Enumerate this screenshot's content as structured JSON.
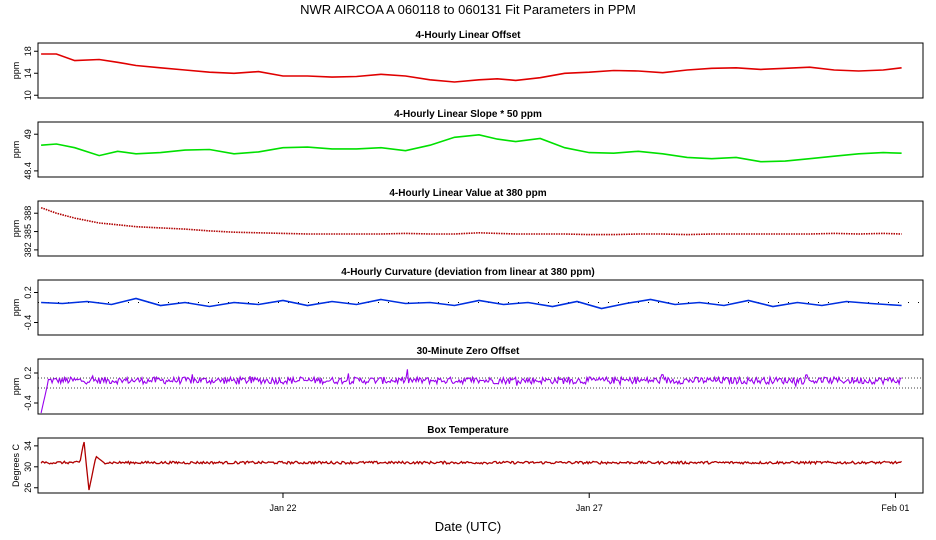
{
  "figure": {
    "title": "NWR   AIRCOA A   060118 to 060131   Fit Parameters in PPM",
    "xlabel": "Date (UTC)",
    "date_start_day": 0,
    "date_end_day": 14.45,
    "x_ticks": [
      {
        "label": "Jan 22",
        "day": 4
      },
      {
        "label": "Jan 27",
        "day": 9
      },
      {
        "label": "Feb 01",
        "day": 14
      }
    ]
  },
  "chart_data": [
    {
      "type": "line",
      "title": "4-Hourly Linear Offset",
      "ylabel": "ppm",
      "ylim": [
        9.5,
        19.5
      ],
      "yticks": [
        10,
        14,
        18
      ],
      "color": "#e00000",
      "style": "line",
      "x": [
        0.05,
        0.3,
        0.6,
        1.0,
        1.3,
        1.6,
        2.0,
        2.4,
        2.8,
        3.2,
        3.6,
        4.0,
        4.4,
        4.8,
        5.2,
        5.6,
        6.0,
        6.4,
        6.8,
        7.2,
        7.5,
        7.8,
        8.2,
        8.6,
        9.0,
        9.4,
        9.8,
        10.2,
        10.6,
        11.0,
        11.4,
        11.8,
        12.2,
        12.6,
        13.0,
        13.4,
        13.8,
        14.1
      ],
      "values": [
        17.5,
        17.5,
        16.3,
        16.5,
        16.0,
        15.4,
        15.0,
        14.6,
        14.2,
        14.0,
        14.3,
        13.5,
        13.5,
        13.3,
        13.4,
        13.8,
        13.5,
        12.8,
        12.4,
        12.8,
        13.0,
        12.7,
        13.2,
        14.0,
        14.2,
        14.5,
        14.4,
        14.1,
        14.6,
        14.9,
        15.0,
        14.7,
        14.9,
        15.1,
        14.6,
        14.4,
        14.6,
        15.0
      ]
    },
    {
      "type": "line",
      "title": "4-Hourly Linear Slope * 50 ppm",
      "ylabel": "ppm",
      "ylim": [
        48.3,
        49.2
      ],
      "yticks": [
        48.4,
        49.0
      ],
      "color": "#00e000",
      "style": "line",
      "x": [
        0.05,
        0.3,
        0.6,
        1.0,
        1.3,
        1.6,
        2.0,
        2.4,
        2.8,
        3.2,
        3.6,
        4.0,
        4.4,
        4.8,
        5.2,
        5.6,
        6.0,
        6.4,
        6.8,
        7.2,
        7.5,
        7.8,
        8.2,
        8.6,
        9.0,
        9.4,
        9.8,
        10.2,
        10.6,
        11.0,
        11.4,
        11.8,
        12.2,
        12.6,
        13.0,
        13.4,
        13.8,
        14.1
      ],
      "values": [
        48.82,
        48.84,
        48.78,
        48.65,
        48.72,
        48.68,
        48.7,
        48.74,
        48.75,
        48.68,
        48.71,
        48.78,
        48.79,
        48.76,
        48.76,
        48.78,
        48.73,
        48.82,
        48.95,
        48.99,
        48.92,
        48.88,
        48.93,
        48.78,
        48.7,
        48.69,
        48.72,
        48.68,
        48.62,
        48.6,
        48.62,
        48.55,
        48.56,
        48.6,
        48.64,
        48.68,
        48.7,
        48.69
      ]
    },
    {
      "type": "line",
      "title": "4-Hourly Linear Value at 380 ppm",
      "ylabel": "ppm",
      "ylim": [
        381,
        390
      ],
      "yticks": [
        382,
        385,
        388
      ],
      "color": "#b00000",
      "style": "dots",
      "x": [
        0.05,
        0.3,
        0.6,
        1.0,
        1.3,
        1.6,
        2.0,
        2.4,
        2.8,
        3.2,
        3.6,
        4.0,
        4.4,
        4.8,
        5.2,
        5.6,
        6.0,
        6.4,
        6.8,
        7.2,
        7.5,
        7.8,
        8.2,
        8.6,
        9.0,
        9.4,
        9.8,
        10.2,
        10.6,
        11.0,
        11.4,
        11.8,
        12.2,
        12.6,
        13.0,
        13.4,
        13.8,
        14.1
      ],
      "values": [
        388.9,
        388.0,
        387.2,
        386.4,
        386.1,
        385.8,
        385.6,
        385.4,
        385.1,
        384.9,
        384.8,
        384.7,
        384.6,
        384.6,
        384.6,
        384.6,
        384.7,
        384.6,
        384.6,
        384.8,
        384.7,
        384.6,
        384.6,
        384.6,
        384.5,
        384.5,
        384.6,
        384.6,
        384.5,
        384.6,
        384.6,
        384.6,
        384.6,
        384.6,
        384.7,
        384.6,
        384.7,
        384.6
      ]
    },
    {
      "type": "line",
      "title": "4-Hourly Curvature (deviation from linear at 380 ppm)",
      "ylabel": "ppm",
      "ylim": [
        -0.65,
        0.45
      ],
      "yticks": [
        -0.4,
        0.2
      ],
      "color": "#0030e0",
      "style": "line",
      "x": [
        0.05,
        0.4,
        0.8,
        1.2,
        1.6,
        2.0,
        2.4,
        2.8,
        3.2,
        3.6,
        4.0,
        4.4,
        4.8,
        5.2,
        5.6,
        6.0,
        6.4,
        6.8,
        7.2,
        7.6,
        8.0,
        8.4,
        8.8,
        9.2,
        9.6,
        10.0,
        10.4,
        10.8,
        11.2,
        11.6,
        12.0,
        12.4,
        12.8,
        13.2,
        13.6,
        14.1
      ],
      "values": [
        0.0,
        -0.02,
        0.02,
        -0.04,
        0.08,
        -0.06,
        0.0,
        -0.08,
        0.0,
        -0.04,
        0.04,
        -0.06,
        0.02,
        -0.04,
        0.06,
        -0.02,
        0.0,
        -0.06,
        0.04,
        -0.04,
        0.0,
        -0.08,
        0.02,
        -0.12,
        -0.02,
        0.06,
        -0.04,
        0.0,
        -0.06,
        0.04,
        -0.08,
        0.0,
        -0.06,
        0.02,
        -0.02,
        -0.06
      ],
      "reference_line": 0,
      "reference_style": "dotted"
    },
    {
      "type": "line",
      "title": "30-Minute Zero Offset",
      "ylabel": "ppm",
      "ylim": [
        -0.62,
        0.48
      ],
      "yticks": [
        -0.4,
        0.2
      ],
      "color": "#9900ee",
      "style": "noisy",
      "baseline": 0.05,
      "noise": 0.07,
      "start_value": -0.6,
      "reference_lines": [
        0.1,
        -0.1
      ],
      "reference_style": "dotted"
    },
    {
      "type": "line",
      "title": "Box Temperature",
      "ylabel": "Degrees C",
      "ylim": [
        25,
        35.5
      ],
      "yticks": [
        26,
        30,
        34
      ],
      "color": "#b00000",
      "style": "noisy-spike",
      "baseline": 30.8,
      "noise": 0.25,
      "spike_day": 0.75,
      "spike_high": 35.0,
      "spike_low": 25.5
    }
  ]
}
